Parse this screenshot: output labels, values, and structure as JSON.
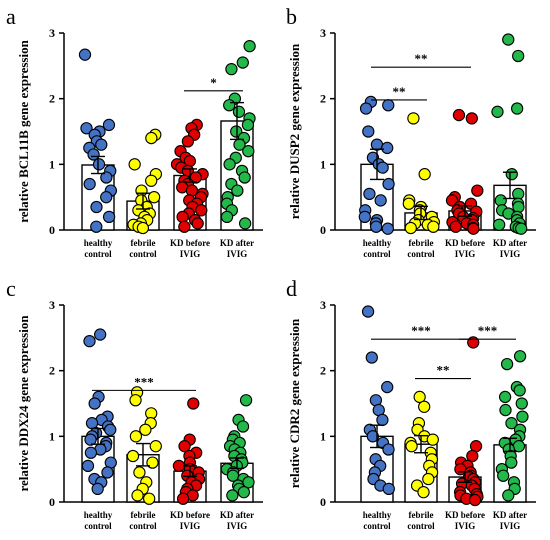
{
  "chart_data": [
    {
      "type": "bar",
      "panel": "a",
      "ylabel": "relative BCL11B gene expression",
      "ylim": [
        0,
        3
      ],
      "yticks": [
        0,
        1,
        2,
        3
      ],
      "categories": [
        "healthy control",
        "febrile control",
        "KD before IVIG",
        "KD after IVIG"
      ],
      "category_lines": [
        [
          "healthy",
          "control"
        ],
        [
          "febrile",
          "control"
        ],
        [
          "KD before",
          "IVIG"
        ],
        [
          "KD after",
          "IVIG"
        ]
      ],
      "colors": [
        "#4472C4",
        "#FFFF00",
        "#E00000",
        "#22B84A"
      ],
      "values": [
        0.99,
        0.44,
        0.83,
        1.66
      ],
      "errors": [
        0.13,
        0.12,
        0.1,
        0.28
      ],
      "points": [
        [
          2.67,
          1.6,
          1.55,
          1.5,
          1.45,
          1.35,
          1.3,
          1.25,
          1.15,
          1.0,
          0.9,
          0.8,
          0.7,
          0.6,
          0.5,
          0.35,
          0.2,
          0.05
        ],
        [
          1.45,
          1.4,
          1.0,
          0.85,
          0.75,
          0.6,
          0.5,
          0.45,
          0.35,
          0.3,
          0.25,
          0.2,
          0.15,
          0.1,
          0.08,
          0.05,
          0.03
        ],
        [
          1.6,
          1.55,
          1.45,
          1.35,
          1.2,
          1.1,
          1.05,
          1.0,
          0.95,
          0.9,
          0.85,
          0.8,
          0.75,
          0.7,
          0.65,
          0.6,
          0.55,
          0.5,
          0.45,
          0.4,
          0.35,
          0.3,
          0.25,
          0.2,
          0.15,
          0.1,
          0.05
        ],
        [
          2.8,
          2.55,
          2.45,
          2.0,
          1.9,
          1.8,
          1.7,
          1.6,
          1.5,
          1.4,
          1.3,
          1.2,
          1.1,
          1.0,
          0.9,
          0.8,
          0.7,
          0.6,
          0.5,
          0.4,
          0.3,
          0.2,
          0.1
        ]
      ],
      "significance": [
        {
          "from": 2,
          "to": 3,
          "label": "*",
          "y": 2.12
        }
      ]
    },
    {
      "type": "bar",
      "panel": "b",
      "ylabel": "relative DUSP2 gene expression",
      "ylim": [
        0,
        3
      ],
      "yticks": [
        0,
        1,
        2,
        3
      ],
      "categories": [
        "healthy control",
        "febrile control",
        "KD before IVIG",
        "KD after IVIG"
      ],
      "category_lines": [
        [
          "healthy",
          "control"
        ],
        [
          "febrile",
          "control"
        ],
        [
          "KD before",
          "IVIG"
        ],
        [
          "KD after",
          "IVIG"
        ]
      ],
      "colors": [
        "#4472C4",
        "#FFFF00",
        "#E00000",
        "#22B84A"
      ],
      "values": [
        1.0,
        0.26,
        0.29,
        0.68
      ],
      "errors": [
        0.23,
        0.1,
        0.08,
        0.2
      ],
      "points": [
        [
          1.95,
          1.9,
          1.85,
          1.5,
          1.3,
          1.25,
          1.1,
          1.0,
          0.95,
          0.7,
          0.55,
          0.45,
          0.3,
          0.2,
          0.15,
          0.1,
          0.05,
          0.02
        ],
        [
          1.7,
          0.85,
          0.45,
          0.4,
          0.35,
          0.3,
          0.25,
          0.2,
          0.15,
          0.12,
          0.1,
          0.08,
          0.05,
          0.03
        ],
        [
          1.75,
          1.7,
          0.6,
          0.5,
          0.45,
          0.4,
          0.35,
          0.3,
          0.28,
          0.25,
          0.2,
          0.18,
          0.15,
          0.12,
          0.1,
          0.08,
          0.05,
          0.03,
          0.02
        ],
        [
          2.9,
          2.65,
          1.85,
          1.8,
          0.85,
          0.55,
          0.45,
          0.4,
          0.35,
          0.3,
          0.25,
          0.2,
          0.15,
          0.1,
          0.08,
          0.05,
          0.03,
          0.02
        ]
      ],
      "significance": [
        {
          "from": 0,
          "to": 1,
          "label": "**",
          "y": 1.98
        },
        {
          "from": 0,
          "to": 2,
          "label": "**",
          "y": 2.48
        }
      ]
    },
    {
      "type": "bar",
      "panel": "c",
      "ylabel": "relative DDX24 gene expression",
      "ylim": [
        0,
        3
      ],
      "yticks": [
        0,
        1,
        2,
        3
      ],
      "categories": [
        "healthy control",
        "febrile control",
        "KD before IVIG",
        "KD after IVIG"
      ],
      "category_lines": [
        [
          "healthy",
          "control"
        ],
        [
          "febrile",
          "control"
        ],
        [
          "KD before",
          "IVIG"
        ],
        [
          "KD after",
          "IVIG"
        ]
      ],
      "colors": [
        "#4472C4",
        "#FFFF00",
        "#E00000",
        "#22B84A"
      ],
      "values": [
        1.0,
        0.72,
        0.47,
        0.59
      ],
      "errors": [
        0.12,
        0.17,
        0.08,
        0.08
      ],
      "points": [
        [
          2.55,
          2.45,
          1.6,
          1.5,
          1.3,
          1.25,
          1.2,
          1.15,
          1.1,
          1.05,
          1.0,
          0.95,
          0.9,
          0.85,
          0.8,
          0.75,
          0.6,
          0.55,
          0.45,
          0.35,
          0.3,
          0.2
        ],
        [
          1.67,
          1.55,
          1.35,
          1.2,
          1.1,
          1.0,
          0.85,
          0.7,
          0.6,
          0.45,
          0.3,
          0.2,
          0.1,
          0.05
        ],
        [
          1.5,
          0.95,
          0.85,
          0.75,
          0.7,
          0.6,
          0.55,
          0.5,
          0.45,
          0.4,
          0.35,
          0.3,
          0.25,
          0.2,
          0.15,
          0.1,
          0.05
        ],
        [
          1.55,
          1.25,
          1.15,
          1.0,
          0.95,
          0.9,
          0.85,
          0.8,
          0.75,
          0.7,
          0.65,
          0.6,
          0.55,
          0.5,
          0.45,
          0.4,
          0.35,
          0.3,
          0.25,
          0.2,
          0.15,
          0.1
        ]
      ],
      "significance": [
        {
          "from": 0,
          "to": 2,
          "label": "***",
          "y": 1.7
        }
      ]
    },
    {
      "type": "bar",
      "panel": "d",
      "ylabel": "relative CDR2 gene expression",
      "ylim": [
        0,
        3
      ],
      "yticks": [
        0,
        1,
        2,
        3
      ],
      "categories": [
        "healthy control",
        "febrile control",
        "KD before IVIG",
        "KD after IVIG"
      ],
      "category_lines": [
        [
          "healthy",
          "control"
        ],
        [
          "febrile",
          "control"
        ],
        [
          "KD before",
          "IVIG"
        ],
        [
          "KD after",
          "IVIG"
        ]
      ],
      "colors": [
        "#4472C4",
        "#FFFF00",
        "#E00000",
        "#22B84A"
      ],
      "values": [
        1.0,
        0.88,
        0.38,
        0.87
      ],
      "errors": [
        0.17,
        0.13,
        0.08,
        0.1
      ],
      "points": [
        [
          2.9,
          2.2,
          1.75,
          1.55,
          1.4,
          1.25,
          1.1,
          1.0,
          0.9,
          0.8,
          0.65,
          0.55,
          0.45,
          0.35,
          0.25,
          0.2
        ],
        [
          1.6,
          1.45,
          1.2,
          1.1,
          1.0,
          0.95,
          0.9,
          0.85,
          0.75,
          0.65,
          0.55,
          0.45,
          0.35,
          0.25,
          0.15
        ],
        [
          2.43,
          0.85,
          0.7,
          0.6,
          0.55,
          0.5,
          0.45,
          0.4,
          0.38,
          0.35,
          0.3,
          0.28,
          0.25,
          0.2,
          0.15,
          0.12,
          0.1,
          0.08,
          0.05,
          0.03
        ],
        [
          2.22,
          2.1,
          1.75,
          1.7,
          1.6,
          1.5,
          1.4,
          1.3,
          1.2,
          1.1,
          1.0,
          0.95,
          0.9,
          0.85,
          0.8,
          0.7,
          0.6,
          0.5,
          0.4,
          0.3,
          0.2,
          0.1
        ]
      ],
      "significance": [
        {
          "from": 0,
          "to": 2,
          "label": "***",
          "y": 2.48
        },
        {
          "from": 2,
          "to": 3,
          "label": "***",
          "y": 2.48
        },
        {
          "from": 1,
          "to": 2,
          "label": "**",
          "y": 1.88
        }
      ]
    }
  ]
}
